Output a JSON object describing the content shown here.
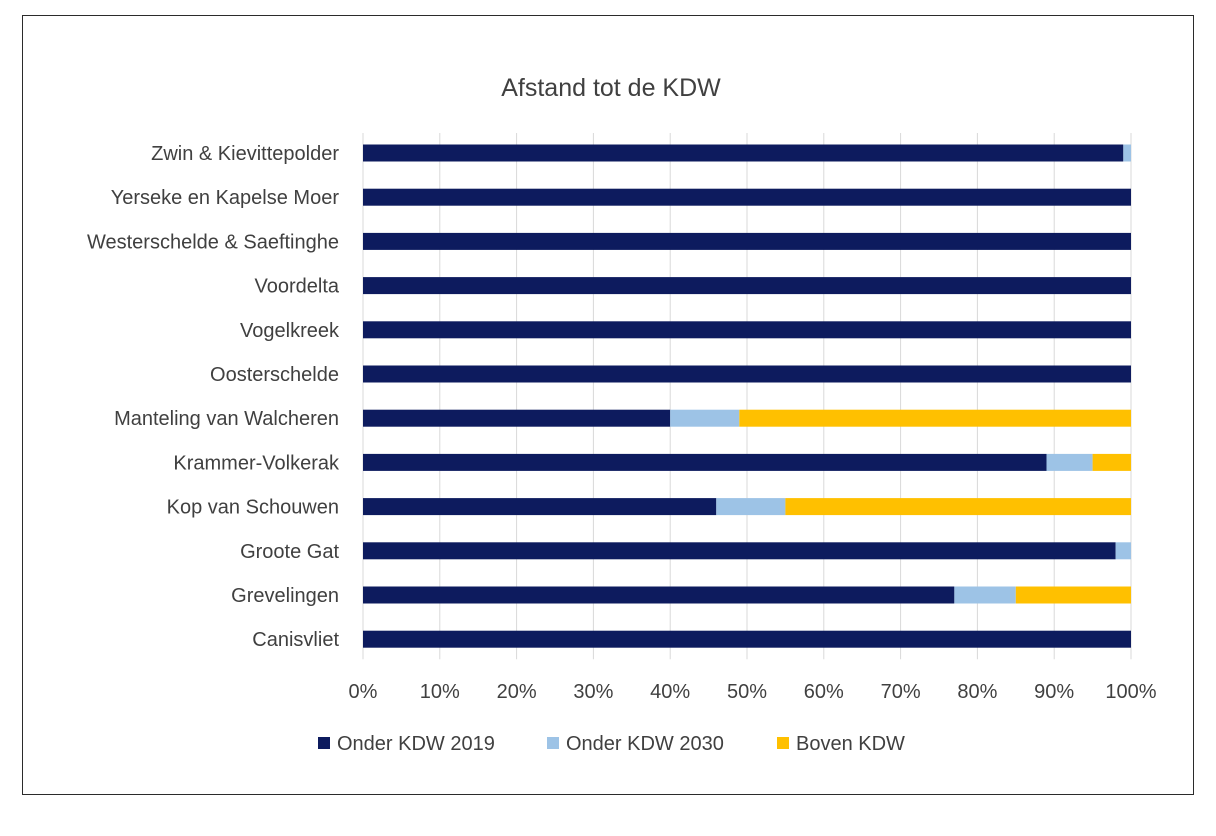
{
  "chart_data": {
    "type": "bar",
    "orientation": "horizontal",
    "stacked": true,
    "title": "Afstand tot de KDW",
    "xlabel": "",
    "ylabel": "",
    "xlim": [
      0,
      100
    ],
    "x_ticks": [
      "0%",
      "10%",
      "20%",
      "30%",
      "40%",
      "50%",
      "60%",
      "70%",
      "80%",
      "90%",
      "100%"
    ],
    "grid": "vertical",
    "legend_position": "bottom",
    "categories": [
      "Zwin & Kievittepolder",
      "Yerseke en Kapelse Moer",
      "Westerschelde & Saeftinghe",
      "Voordelta",
      "Vogelkreek",
      "Oosterschelde",
      "Manteling van Walcheren",
      "Krammer-Volkerak",
      "Kop van Schouwen",
      "Groote Gat",
      "Grevelingen",
      "Canisvliet"
    ],
    "series": [
      {
        "name": "Onder KDW 2019",
        "color": "#0d1b5e",
        "values": [
          99,
          100,
          100,
          100,
          100,
          100,
          40,
          89,
          46,
          98,
          77,
          100
        ]
      },
      {
        "name": "Onder KDW 2030",
        "color": "#9dc3e6",
        "values": [
          1,
          0,
          0,
          0,
          0,
          0,
          9,
          6,
          9,
          2,
          8,
          0
        ]
      },
      {
        "name": "Boven KDW",
        "color": "#ffc000",
        "values": [
          0,
          0,
          0,
          0,
          0,
          0,
          51,
          5,
          45,
          0,
          15,
          0
        ]
      }
    ]
  }
}
